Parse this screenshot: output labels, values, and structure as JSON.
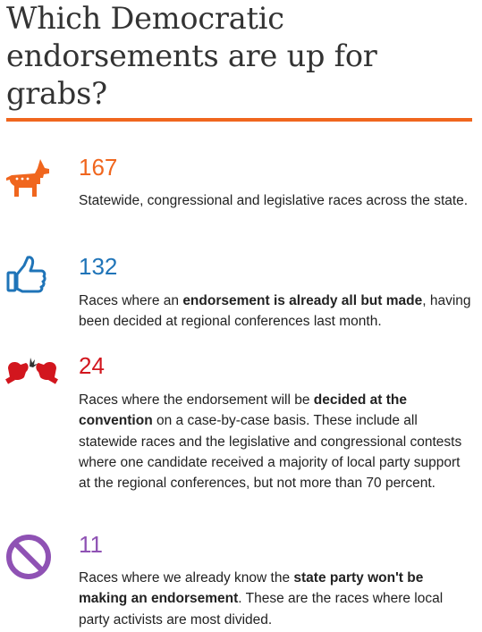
{
  "title": "Which Democratic endorsements are up for grabs?",
  "colors": {
    "accent": "#f0661e",
    "blue": "#1f74b8",
    "red": "#d2161e",
    "purple": "#8f52b4"
  },
  "items": [
    {
      "icon": "donkey-icon",
      "count": "167",
      "text_a": "Statewide, congressional and legislative races across the state.",
      "bold": "",
      "text_b": ""
    },
    {
      "icon": "thumbs-up-icon",
      "count": "132",
      "text_a": "Races where an ",
      "bold": "endorsement is already all but made",
      "text_b": ", having been decided at regional conferences last month."
    },
    {
      "icon": "boxing-gloves-icon",
      "count": "24",
      "text_a": "Races where the endorsement will be ",
      "bold": "decided at the convention",
      "text_b": " on a case-by-case basis. These include all statewide races and the legislative and congressional contests where one candidate received a majority of local party support at the regional conferences, but not more than 70 percent."
    },
    {
      "icon": "prohibited-icon",
      "count": "11",
      "text_a": "Races where we already know the ",
      "bold": "state party won't be making an endorsement",
      "text_b": ". These are the races where local party activists are most divided."
    }
  ]
}
